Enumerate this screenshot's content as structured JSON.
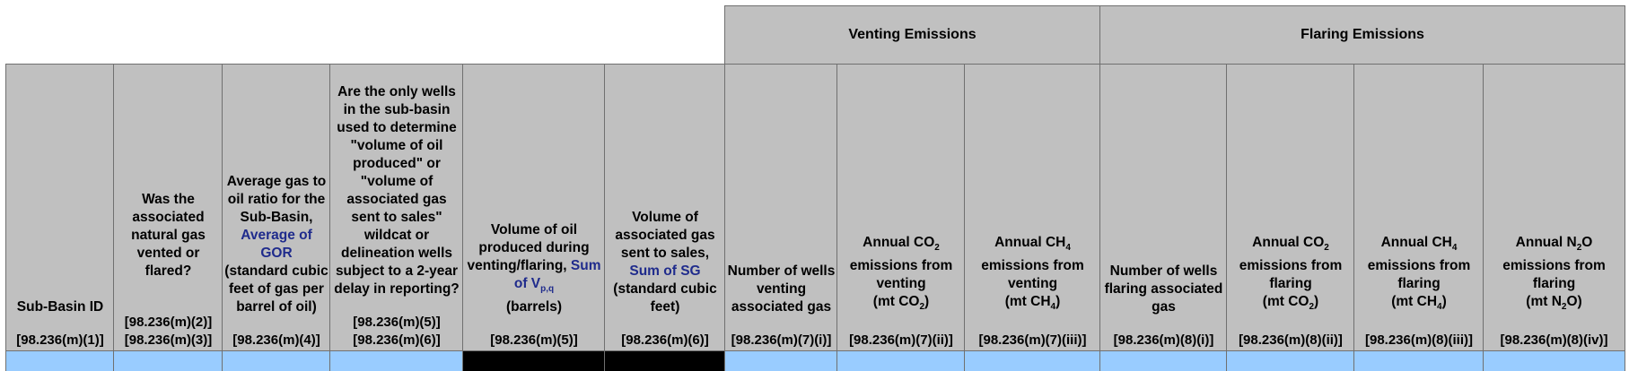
{
  "groups": {
    "venting": "Venting Emissions",
    "flaring": "Flaring Emissions"
  },
  "columns": {
    "subbasin": {
      "title": "Sub-Basin ID",
      "ref": "[98.236(m)(1)]"
    },
    "vented": {
      "title": "Was the associated natural gas vented or flared?",
      "ref_a": "[98.236(m)(2)]",
      "ref": "[98.236(m)(3)]"
    },
    "gor": {
      "title_a": "Average gas to oil ratio for the Sub-Basin,",
      "title_b": "Average of GOR",
      "title_c": "(standard cubic feet of gas per barrel of oil)",
      "ref": "[98.236(m)(4)]"
    },
    "wildcat": {
      "title": "Are the only wells in the sub-basin used to determine \"volume of oil produced\" or \"volume of associated gas sent to sales\" wildcat or delineation wells subject to a 2-year delay in reporting?",
      "ref_a": "[98.236(m)(5)]",
      "ref": "[98.236(m)(6)]"
    },
    "oilvol": {
      "title_a": "Volume of oil produced during venting/flaring,",
      "title_b": "Sum of V",
      "title_b_sub": "p,q",
      "title_c": "(barrels)",
      "ref": "[98.236(m)(5)]"
    },
    "gasvol": {
      "title_a": "Volume of associated gas sent to sales,",
      "title_b": "Sum of SG",
      "title_c": "(standard cubic feet)",
      "ref": "[98.236(m)(6)]"
    },
    "ventwells": {
      "title": "Number of wells venting associated gas",
      "ref": "[98.236(m)(7)(i)]"
    },
    "ventco2": {
      "title": "Annual CO",
      "sub": "2",
      "title_b": "emissions from venting",
      "unit": "(mt CO",
      "unit_end": ")",
      "ref": "[98.236(m)(7)(ii)]"
    },
    "ventch4": {
      "title": "Annual CH",
      "sub": "4",
      "title_b": "emissions from venting",
      "unit": "(mt CH",
      "unit_end": ")",
      "ref": "[98.236(m)(7)(iii)]"
    },
    "flarewells": {
      "title": "Number of wells flaring associated gas",
      "ref": "[98.236(m)(8)(i)]"
    },
    "flareco2": {
      "title": "Annual CO",
      "sub": "2",
      "title_b": "emissions from flaring",
      "unit": "(mt CO",
      "unit_end": ")",
      "ref": "[98.236(m)(8)(ii)]"
    },
    "flarech4": {
      "title": "Annual CH",
      "sub": "4",
      "title_b": "emissions from flaring",
      "unit": "(mt CH",
      "unit_end": ")",
      "ref": "[98.236(m)(8)(iii)]"
    },
    "flaren2o": {
      "title": "Annual N",
      "sub": "2",
      "title_mid": "O",
      "title_b": "emissions from flaring",
      "unit": "(mt N",
      "unit_end": "O)",
      "ref": "[98.236(m)(8)(iv)]"
    }
  },
  "colors": {
    "header": "#c0c0c0",
    "input": "#99ccff",
    "blocked": "#000000",
    "link_text": "#1f2b8c"
  }
}
